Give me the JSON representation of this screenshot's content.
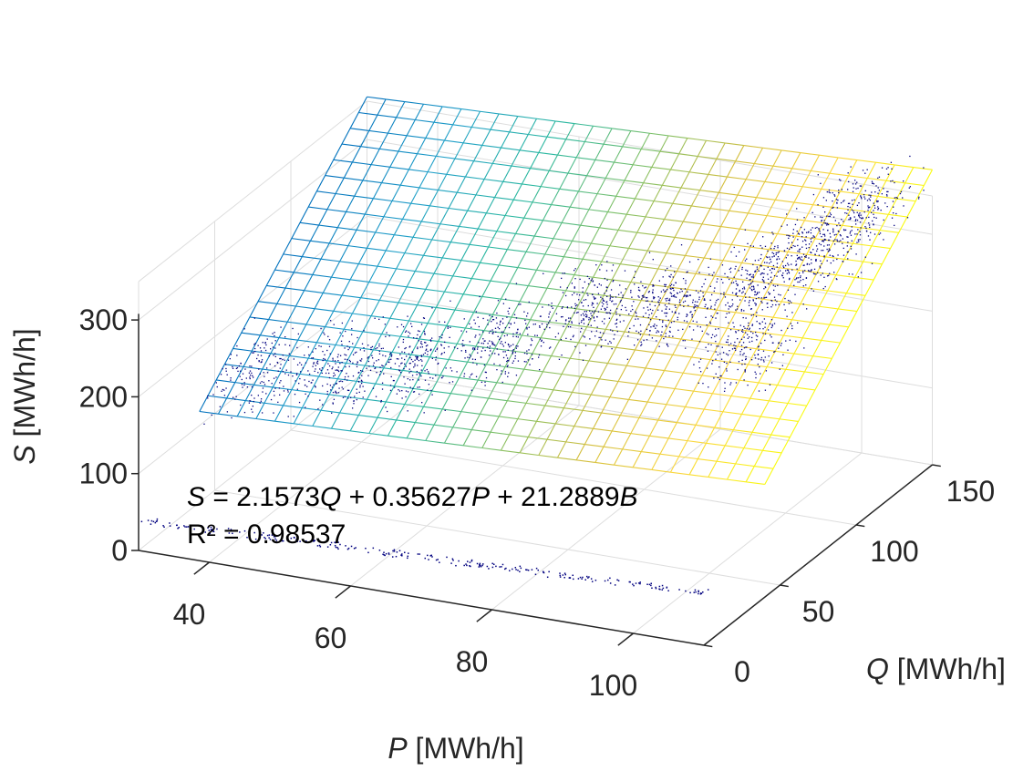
{
  "chart_data": {
    "type": "scatter",
    "subtype": "3d-scatter-with-fitted-plane",
    "axes": {
      "x": {
        "label_var": "P",
        "label_unit": " [MWh/h]",
        "ticks": [
          40,
          60,
          80,
          100
        ],
        "range": [
          30,
          110
        ]
      },
      "y": {
        "label_var": "Q",
        "label_unit": " [MWh/h]",
        "ticks": [
          0,
          50,
          100,
          150
        ],
        "range": [
          0,
          150
        ]
      },
      "z": {
        "label_var": "S",
        "label_unit": " [MWh/h]",
        "ticks": [
          0,
          100,
          200,
          300
        ],
        "range": [
          0,
          350
        ]
      }
    },
    "tick_labels": {
      "x": [
        "40",
        "60",
        "80",
        "100"
      ],
      "y": [
        "0",
        "50",
        "100",
        "150"
      ],
      "z": [
        "0",
        "100",
        "200",
        "300"
      ]
    },
    "fit": {
      "coefficients": {
        "Q": 2.1573,
        "P": 0.35627,
        "B": 21.2889
      },
      "P_range": [
        30,
        110
      ],
      "Q_range": [
        40,
        150
      ],
      "mesh_divisions_P": 30,
      "mesh_divisions_Q": 20
    },
    "annotation": {
      "eq_S": "S",
      "eq_part1": " = 2.1573",
      "eq_Q": "Q",
      "eq_part2": " + 0.35627",
      "eq_P": "P",
      "eq_part3": " + 21.2889",
      "eq_B": "B",
      "r2": "R² = 0.98537"
    },
    "scatter_clusters": [
      {
        "P": 35,
        "Q": 55,
        "n": 180
      },
      {
        "P": 45,
        "Q": 60,
        "n": 220
      },
      {
        "P": 55,
        "Q": 65,
        "n": 220
      },
      {
        "P": 65,
        "Q": 75,
        "n": 240
      },
      {
        "P": 75,
        "Q": 90,
        "n": 260
      },
      {
        "P": 85,
        "Q": 95,
        "n": 260
      },
      {
        "P": 95,
        "Q": 105,
        "n": 280
      },
      {
        "P": 100,
        "Q": 120,
        "n": 260
      },
      {
        "P": 103,
        "Q": 135,
        "n": 220
      },
      {
        "P": 98,
        "Q": 85,
        "n": 200
      }
    ],
    "baseline_points": {
      "Q": 1,
      "P_range": [
        30,
        110
      ],
      "n": 260
    },
    "grid": true,
    "colors": {
      "scatter": "#00007f",
      "mesh_colormap": [
        "#0072bd",
        "#21a0c8",
        "#2ab7a0",
        "#7cc06a",
        "#d4bf3e",
        "#fad73e",
        "#f9fb0e"
      ],
      "axis": "#262626",
      "grid": "#dddddd"
    }
  }
}
